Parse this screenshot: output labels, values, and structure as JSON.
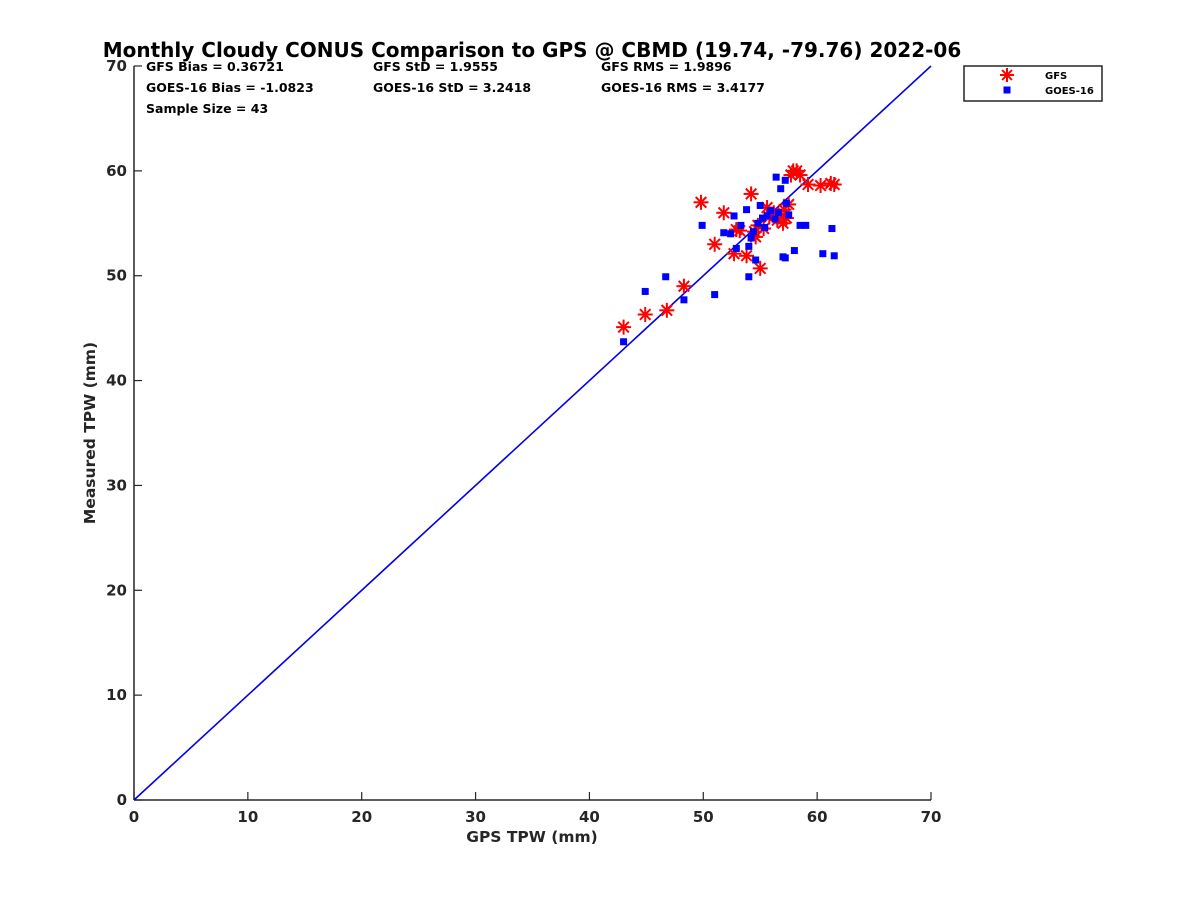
{
  "title": "Monthly Cloudy CONUS Comparison to GPS @ CBMD (19.74, -79.76) 2022-06",
  "stats": {
    "gfs_bias": "GFS Bias = 0.36721",
    "gfs_std": "GFS StD = 1.9555",
    "gfs_rms": "GFS RMS = 1.9896",
    "goes_bias": "GOES-16 Bias = -1.0823",
    "goes_std": "GOES-16 StD = 3.2418",
    "goes_rms": "GOES-16 RMS = 3.4177",
    "sample_size": "Sample Size = 43"
  },
  "colors": {
    "gfs": "#ff0000",
    "goes": "#0000ff",
    "line": "#0000ee",
    "axis": "#262626"
  },
  "chart_data": {
    "type": "scatter",
    "xlabel": "GPS TPW (mm)",
    "ylabel": "Measured TPW (mm)",
    "xlim": [
      0,
      70
    ],
    "ylim": [
      0,
      70
    ],
    "xticks": [
      "0",
      "10",
      "20",
      "30",
      "40",
      "50",
      "60",
      "70"
    ],
    "yticks": [
      "0",
      "10",
      "20",
      "30",
      "40",
      "50",
      "60",
      "70"
    ],
    "grid": false,
    "legend_position": "outside top-right",
    "reference_line": {
      "label": "1:1",
      "from": [
        0,
        0
      ],
      "to": [
        70,
        70
      ]
    },
    "series": [
      {
        "name": "GFS",
        "marker": "asterisk",
        "points": [
          [
            43.0,
            45.1
          ],
          [
            44.9,
            46.3
          ],
          [
            46.8,
            46.7
          ],
          [
            48.3,
            49.0
          ],
          [
            49.8,
            57.0
          ],
          [
            51.0,
            53.0
          ],
          [
            51.8,
            56.0
          ],
          [
            52.7,
            52.1
          ],
          [
            52.9,
            54.4
          ],
          [
            53.2,
            54.3
          ],
          [
            53.8,
            51.9
          ],
          [
            54.2,
            57.8
          ],
          [
            54.5,
            54.2
          ],
          [
            54.6,
            53.7
          ],
          [
            54.8,
            54.8
          ],
          [
            55.0,
            50.7
          ],
          [
            55.3,
            54.5
          ],
          [
            55.6,
            56.5
          ],
          [
            55.8,
            55.6
          ],
          [
            56.2,
            56.0
          ],
          [
            56.5,
            55.3
          ],
          [
            57.0,
            55.0
          ],
          [
            57.1,
            56.3
          ],
          [
            57.3,
            55.5
          ],
          [
            57.5,
            56.8
          ],
          [
            57.7,
            59.6
          ],
          [
            57.9,
            60.0
          ],
          [
            58.2,
            60.0
          ],
          [
            58.5,
            59.6
          ],
          [
            59.2,
            58.7
          ],
          [
            60.3,
            58.6
          ],
          [
            61.2,
            58.8
          ],
          [
            61.5,
            58.7
          ]
        ]
      },
      {
        "name": "GOES-16",
        "marker": "square",
        "points": [
          [
            43.0,
            43.7
          ],
          [
            44.9,
            48.5
          ],
          [
            46.7,
            49.9
          ],
          [
            48.3,
            47.7
          ],
          [
            49.9,
            54.8
          ],
          [
            51.0,
            48.2
          ],
          [
            51.8,
            54.1
          ],
          [
            52.4,
            54.0
          ],
          [
            52.7,
            55.7
          ],
          [
            52.9,
            52.6
          ],
          [
            53.3,
            54.8
          ],
          [
            53.8,
            56.3
          ],
          [
            54.0,
            49.9
          ],
          [
            54.0,
            52.8
          ],
          [
            54.2,
            53.6
          ],
          [
            54.4,
            54.2
          ],
          [
            54.6,
            51.5
          ],
          [
            54.8,
            55.0
          ],
          [
            55.0,
            56.7
          ],
          [
            55.2,
            55.5
          ],
          [
            55.4,
            54.6
          ],
          [
            55.6,
            55.7
          ],
          [
            55.9,
            56.2
          ],
          [
            56.3,
            55.4
          ],
          [
            56.4,
            59.4
          ],
          [
            56.6,
            56.0
          ],
          [
            56.8,
            58.3
          ],
          [
            57.0,
            51.8
          ],
          [
            57.2,
            51.7
          ],
          [
            57.2,
            59.1
          ],
          [
            57.3,
            56.9
          ],
          [
            57.5,
            55.8
          ],
          [
            58.0,
            52.4
          ],
          [
            58.5,
            54.8
          ],
          [
            59.0,
            54.8
          ],
          [
            60.5,
            52.1
          ],
          [
            61.3,
            54.5
          ],
          [
            61.5,
            51.9
          ]
        ]
      }
    ]
  }
}
